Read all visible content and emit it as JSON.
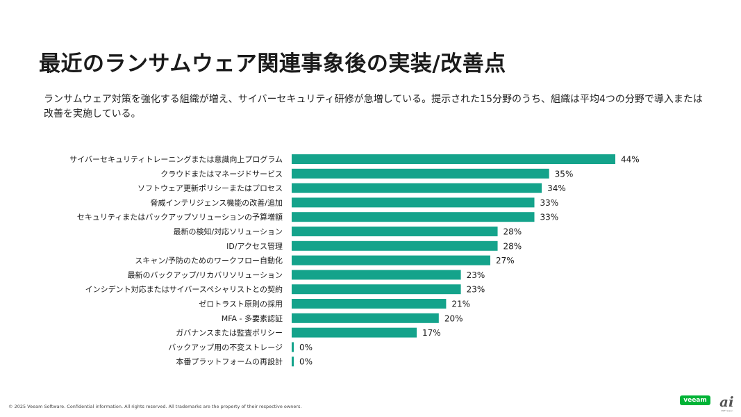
{
  "title": "最近のランサムウェア関連事象後の実装/改善点",
  "subtitle": "ランサムウェア対策を強化する組織が増え、サイバーセキュリティ研修が急増している。提示された15分野のうち、組織は平均4つの分野で導入または改善を実施している。",
  "footer": "© 2025 Veeam Software. Confidential information. All rights reserved. All trademarks are the property of their respective owners.",
  "logo_text": "veeam",
  "site_mark": "ai",
  "site_small": "CNET Japan",
  "colors": {
    "bar": "#14a38b",
    "logo": "#00b336"
  },
  "chart_data": {
    "type": "bar",
    "orientation": "horizontal",
    "categories": [
      "サイバーセキュリティトレーニングまたは意識向上プログラム",
      "クラウドまたはマネージドサービス",
      "ソフトウェア更新ポリシーまたはプロセス",
      "脅威インテリジェンス機能の改善/追加",
      "セキュリティまたはバックアップソリューションの予算増額",
      "最新の検知/対応ソリューション",
      "ID/アクセス管理",
      "スキャン/予防のためのワークフロー自動化",
      "最新のバックアップ/リカバリソリューション",
      "インシデント対応またはサイバースペシャリストとの契約",
      "ゼロトラスト原則の採用",
      "MFA - 多要素認証",
      "ガバナンスまたは監査ポリシー",
      "バックアップ用の不変ストレージ",
      "本番プラットフォームの再設計"
    ],
    "values": [
      44,
      35,
      34,
      33,
      33,
      28,
      28,
      27,
      23,
      23,
      21,
      20,
      17,
      0,
      0
    ],
    "value_labels": [
      "44%",
      "35%",
      "34%",
      "33%",
      "33%",
      "28%",
      "28%",
      "27%",
      "23%",
      "23%",
      "21%",
      "20%",
      "17%",
      "0%",
      "0%"
    ],
    "xlim": [
      0,
      44
    ],
    "grid": false,
    "legend": "none"
  }
}
